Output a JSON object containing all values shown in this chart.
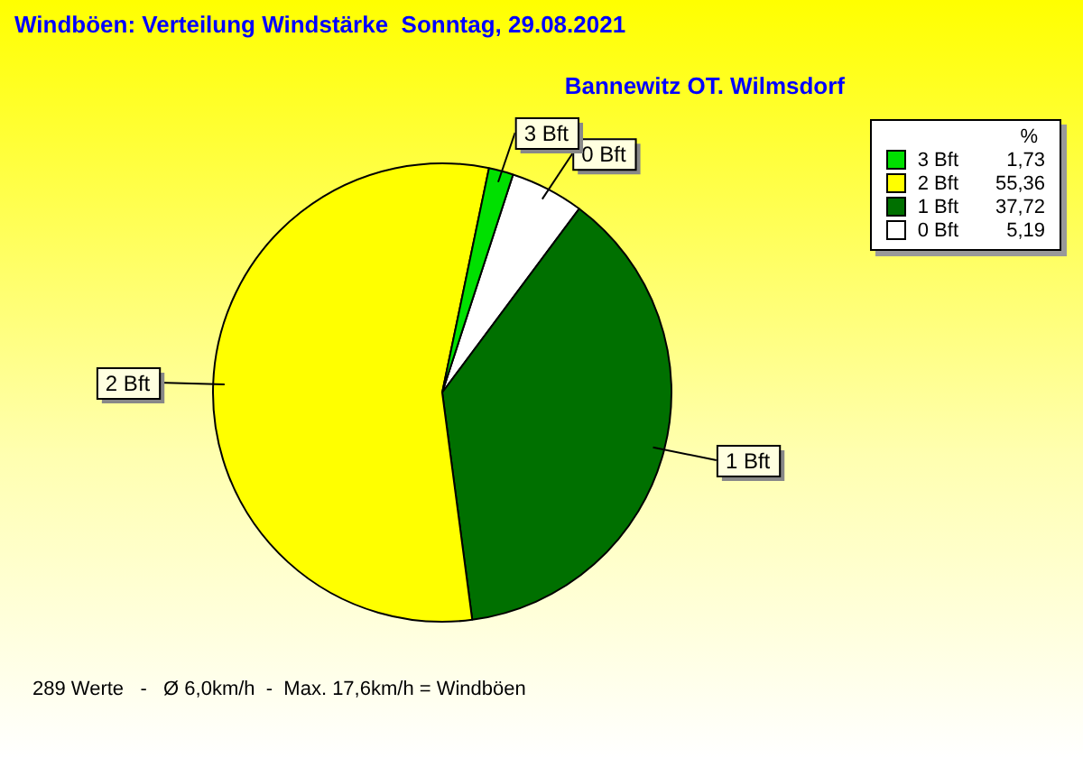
{
  "chart_data": {
    "type": "pie",
    "title": "Windböen: Verteilung Windstärke  Sonntag, 29.08.2021",
    "subtitle": "Bannewitz OT. Wilmsdorf",
    "legend_title": "%",
    "categories": [
      "3 Bft",
      "2 Bft",
      "1 Bft",
      "0 Bft"
    ],
    "values": [
      1.73,
      55.36,
      37.72,
      5.19
    ],
    "value_labels": [
      "1,73",
      "55,36",
      "37,72",
      "5,19"
    ],
    "colors": [
      "#00e000",
      "#ffff00",
      "#007000",
      "#ffffff"
    ],
    "legend": "top right",
    "annotations": [
      "289 Werte   -   Ø 6,0km/h  -  Max. 17,6km/h = Windböen"
    ]
  }
}
